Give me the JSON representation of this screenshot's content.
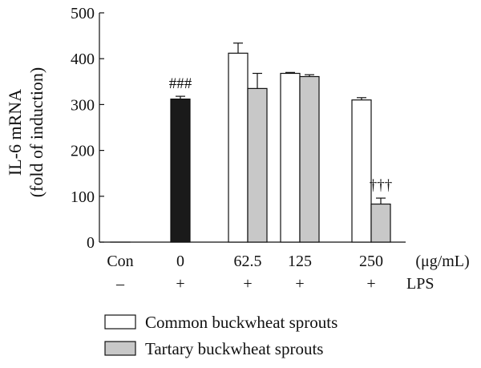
{
  "chart_data": {
    "type": "bar",
    "ylabel": [
      "IL-6 mRNA",
      "(fold of induction)"
    ],
    "ylim": [
      0,
      500
    ],
    "yticks": [
      0,
      100,
      200,
      300,
      400,
      500
    ],
    "categories": [
      "Con",
      "0",
      "62.5",
      "125",
      "250"
    ],
    "x_unit": "(μg/mL)",
    "lps_row": {
      "label": "LPS",
      "values": [
        "–",
        "+",
        "+",
        "+",
        "+"
      ]
    },
    "series": [
      {
        "name": "Control",
        "values": [
          0,
          null,
          null,
          null,
          null
        ],
        "errors": [
          0,
          null,
          null,
          null,
          null
        ],
        "color": "#ffffff"
      },
      {
        "name": "LPS",
        "values": [
          null,
          312,
          null,
          null,
          null
        ],
        "errors": [
          null,
          6,
          null,
          null,
          null
        ],
        "color": "#1a1a1a"
      },
      {
        "name": "Common buckwheat sprouts",
        "values": [
          null,
          null,
          412,
          368,
          310
        ],
        "errors": [
          null,
          null,
          22,
          2,
          5
        ],
        "color": "#ffffff"
      },
      {
        "name": "Tartary buckwheat sprouts",
        "values": [
          null,
          null,
          335,
          361,
          83
        ],
        "errors": [
          null,
          null,
          33,
          4,
          13
        ],
        "color": "#c8c8c8"
      }
    ],
    "annotations": [
      {
        "text": "###",
        "category": "0"
      },
      {
        "text": "†††",
        "category": "250"
      }
    ],
    "legend": {
      "placement": "bottom",
      "entries": [
        {
          "label": "Common buckwheat sprouts",
          "color": "#ffffff"
        },
        {
          "label": "Tartary buckwheat sprouts",
          "color": "#c8c8c8"
        }
      ]
    },
    "grid": false
  }
}
